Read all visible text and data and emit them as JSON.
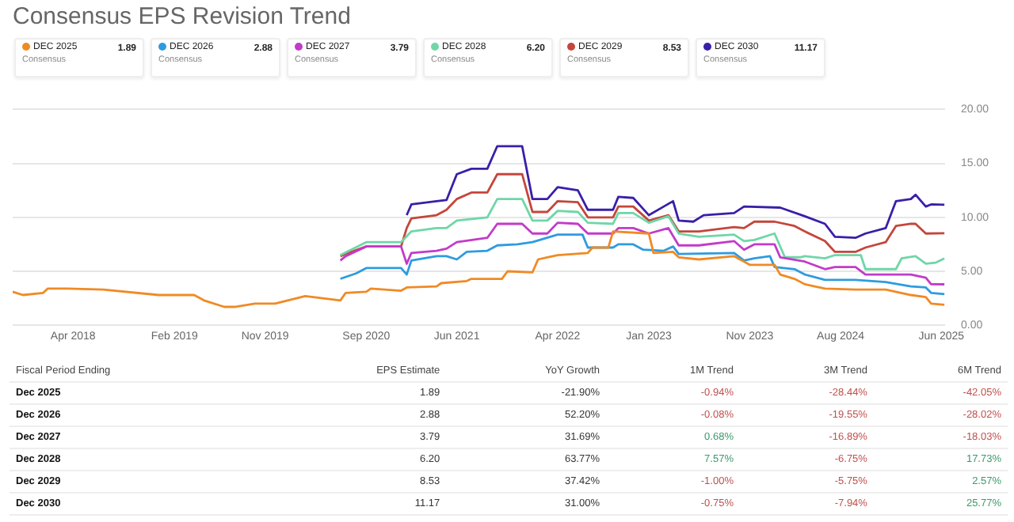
{
  "chart_data": [
    {
      "type": "line",
      "title": "Consensus EPS Revision Trend",
      "legend_title": "Consensus",
      "legend": "top left",
      "grid": "y",
      "marker": "none",
      "line_style": "solid",
      "xlim": [
        "2017-10-01",
        "2025-06-12"
      ],
      "xticks": [
        {
          "value": "2018-04",
          "label": "Apr 2018"
        },
        {
          "value": "2019-02",
          "label": "Feb 2019"
        },
        {
          "value": "2019-11",
          "label": "Nov 2019"
        },
        {
          "value": "2020-09",
          "label": "Sep 2020"
        },
        {
          "value": "2021-06",
          "label": "Jun 2021"
        },
        {
          "value": "2022-04",
          "label": "Apr 2022"
        },
        {
          "value": "2023-01",
          "label": "Jan 2023"
        },
        {
          "value": "2023-11",
          "label": "Nov 2023"
        },
        {
          "value": "2024-08",
          "label": "Aug 2024"
        },
        {
          "value": "2025-06",
          "label": "Jun 2025"
        }
      ],
      "ylim": [
        0,
        20
      ],
      "yticks": [
        {
          "value": 0,
          "label": "0.00"
        },
        {
          "value": 5,
          "label": "5.00"
        },
        {
          "value": 10,
          "label": "10.00"
        },
        {
          "value": 15,
          "label": "15.00"
        },
        {
          "value": 20,
          "label": "20.00"
        }
      ],
      "series": [
        {
          "name": "DEC 2025",
          "color": "#f08a24",
          "x": [
            "2017-10-01",
            "2017-11-01",
            "2018-01-01",
            "2018-01-15",
            "2018-03-15",
            "2018-07-01",
            "2018-12-15",
            "2019-04-01",
            "2019-05-01",
            "2019-07-01",
            "2019-08-01",
            "2019-10-01",
            "2019-12-01",
            "2020-03-01",
            "2020-06-15",
            "2020-07-01",
            "2020-09-01",
            "2020-09-15",
            "2020-12-15",
            "2021-01-01",
            "2021-04-01",
            "2021-04-15",
            "2021-07-01",
            "2021-07-15",
            "2021-10-15",
            "2021-11-01",
            "2022-01-15",
            "2022-02-01",
            "2022-03-01",
            "2022-04-01",
            "2022-07-01",
            "2022-07-15",
            "2022-09-01",
            "2022-09-15",
            "2023-01-01",
            "2023-01-15",
            "2023-03-15",
            "2023-04-01",
            "2023-06-01",
            "2023-09-15",
            "2023-10-15",
            "2023-11-01",
            "2024-01-15",
            "2024-02-01",
            "2024-03-15",
            "2024-04-15",
            "2024-05-15",
            "2024-06-15",
            "2024-09-15",
            "2024-12-15",
            "2025-03-01",
            "2025-04-15",
            "2025-05-01",
            "2025-06-10"
          ],
          "values": [
            3.1,
            2.8,
            3.0,
            3.4,
            3.4,
            3.3,
            2.8,
            2.8,
            2.3,
            1.7,
            1.7,
            2.0,
            2.0,
            2.7,
            2.3,
            3.0,
            3.1,
            3.4,
            3.2,
            3.5,
            3.6,
            3.9,
            4.1,
            4.3,
            4.3,
            5.0,
            4.9,
            6.1,
            6.3,
            6.5,
            6.7,
            7.2,
            7.2,
            8.7,
            8.5,
            6.7,
            6.8,
            6.3,
            6.1,
            6.4,
            5.9,
            5.6,
            5.6,
            4.7,
            4.3,
            3.8,
            3.6,
            3.4,
            3.3,
            3.3,
            2.8,
            2.6,
            2.0,
            1.89
          ]
        },
        {
          "name": "DEC 2026",
          "color": "#2e9be0",
          "x": [
            "2020-06-15",
            "2020-08-01",
            "2020-09-01",
            "2020-12-15",
            "2021-01-01",
            "2021-01-15",
            "2021-04-01",
            "2021-05-01",
            "2021-06-01",
            "2021-07-01",
            "2021-09-01",
            "2021-10-01",
            "2021-12-01",
            "2022-01-15",
            "2022-04-01",
            "2022-06-15",
            "2022-07-01",
            "2022-09-15",
            "2022-10-01",
            "2022-11-15",
            "2022-12-15",
            "2023-02-15",
            "2023-03-15",
            "2023-04-01",
            "2023-09-15",
            "2023-10-15",
            "2023-11-15",
            "2024-01-01",
            "2024-01-15",
            "2024-03-15",
            "2024-04-15",
            "2024-06-15",
            "2024-09-15",
            "2024-12-15",
            "2025-03-01",
            "2025-04-15",
            "2025-05-01",
            "2025-06-10"
          ],
          "values": [
            4.3,
            4.8,
            5.3,
            5.3,
            4.7,
            6.0,
            6.4,
            6.4,
            6.1,
            6.8,
            6.9,
            7.4,
            7.5,
            7.7,
            8.4,
            8.4,
            7.2,
            7.2,
            7.5,
            7.5,
            7.0,
            6.9,
            7.3,
            6.6,
            6.7,
            6.0,
            6.2,
            6.4,
            5.4,
            5.2,
            4.7,
            4.2,
            4.2,
            4.0,
            3.6,
            3.5,
            3.0,
            2.88
          ]
        },
        {
          "name": "DEC 2027",
          "color": "#c23bc9",
          "x": [
            "2020-06-15",
            "2020-07-01",
            "2020-09-01",
            "2020-12-15",
            "2021-01-01",
            "2021-01-15",
            "2021-04-01",
            "2021-05-01",
            "2021-06-01",
            "2021-09-01",
            "2021-10-01",
            "2021-12-15",
            "2022-01-15",
            "2022-03-01",
            "2022-04-01",
            "2022-06-01",
            "2022-07-01",
            "2022-09-15",
            "2022-10-01",
            "2022-11-15",
            "2023-01-01",
            "2023-03-01",
            "2023-04-01",
            "2023-06-01",
            "2023-09-15",
            "2023-10-15",
            "2023-11-15",
            "2024-01-15",
            "2024-02-01",
            "2024-04-15",
            "2024-06-15",
            "2024-07-15",
            "2024-09-15",
            "2024-10-15",
            "2025-03-01",
            "2025-04-15",
            "2025-05-01",
            "2025-06-10"
          ],
          "values": [
            6.0,
            6.4,
            7.3,
            7.3,
            5.7,
            6.7,
            6.9,
            7.1,
            7.7,
            8.1,
            9.4,
            9.4,
            8.5,
            8.5,
            9.5,
            9.4,
            8.5,
            8.5,
            9.0,
            9.0,
            8.5,
            9.0,
            7.4,
            7.4,
            7.8,
            7.0,
            7.5,
            7.5,
            6.3,
            5.9,
            5.2,
            5.4,
            5.4,
            4.7,
            4.7,
            4.4,
            3.8,
            3.79
          ]
        },
        {
          "name": "DEC 2028",
          "color": "#6fd6a8",
          "x": [
            "2020-06-15",
            "2020-09-01",
            "2020-12-15",
            "2021-01-15",
            "2021-04-01",
            "2021-05-01",
            "2021-06-01",
            "2021-09-01",
            "2021-10-01",
            "2021-12-15",
            "2022-01-15",
            "2022-03-01",
            "2022-04-01",
            "2022-06-01",
            "2022-07-01",
            "2022-09-15",
            "2022-10-01",
            "2022-11-15",
            "2023-01-01",
            "2023-03-01",
            "2023-04-01",
            "2023-06-01",
            "2023-09-15",
            "2023-10-15",
            "2023-11-15",
            "2024-01-15",
            "2024-02-15",
            "2024-04-01",
            "2024-04-15",
            "2024-06-15",
            "2024-07-15",
            "2024-10-01",
            "2024-10-15",
            "2025-01-15",
            "2025-02-01",
            "2025-03-15",
            "2025-04-15",
            "2025-05-15",
            "2025-06-10"
          ],
          "values": [
            6.5,
            7.7,
            7.7,
            8.7,
            9.0,
            9.0,
            9.7,
            10.0,
            11.7,
            11.7,
            9.7,
            9.7,
            10.6,
            10.5,
            9.5,
            9.4,
            10.4,
            10.4,
            9.5,
            10.1,
            8.5,
            8.2,
            8.4,
            7.8,
            7.9,
            8.5,
            6.3,
            6.3,
            6.4,
            6.2,
            6.5,
            6.5,
            5.2,
            5.2,
            6.2,
            6.4,
            5.7,
            5.8,
            6.2
          ]
        },
        {
          "name": "DEC 2029",
          "color": "#c4463c",
          "x": [
            "2020-06-15",
            "2020-07-01",
            "2020-09-01",
            "2020-12-15",
            "2021-01-01",
            "2021-01-15",
            "2021-04-01",
            "2021-05-01",
            "2021-06-01",
            "2021-07-15",
            "2021-09-01",
            "2021-10-01",
            "2021-12-15",
            "2022-01-15",
            "2022-03-01",
            "2022-04-01",
            "2022-06-01",
            "2022-07-01",
            "2022-09-15",
            "2022-10-01",
            "2022-11-15",
            "2023-01-01",
            "2023-03-01",
            "2023-04-01",
            "2023-06-01",
            "2023-09-15",
            "2023-10-15",
            "2023-11-15",
            "2024-01-15",
            "2024-03-15",
            "2024-04-15",
            "2024-06-15",
            "2024-07-15",
            "2024-09-15",
            "2024-10-15",
            "2024-12-15",
            "2025-01-15",
            "2025-03-01",
            "2025-03-15",
            "2025-04-15",
            "2025-06-10"
          ],
          "values": [
            6.4,
            6.6,
            7.3,
            7.3,
            9.0,
            9.9,
            10.2,
            10.7,
            11.7,
            12.3,
            12.3,
            14.0,
            14.0,
            10.5,
            10.5,
            11.5,
            11.4,
            10.0,
            10.0,
            11.0,
            11.0,
            9.7,
            10.2,
            8.7,
            8.7,
            9.1,
            9.0,
            9.6,
            9.6,
            9.2,
            8.7,
            7.8,
            6.8,
            6.8,
            7.2,
            7.7,
            9.2,
            9.4,
            9.4,
            8.5,
            8.53
          ]
        },
        {
          "name": "DEC 2030",
          "color": "#3a1fa8",
          "x": [
            "2021-01-01",
            "2021-01-15",
            "2021-04-01",
            "2021-05-01",
            "2021-06-01",
            "2021-07-15",
            "2021-09-01",
            "2021-10-01",
            "2021-12-15",
            "2022-01-15",
            "2022-03-01",
            "2022-04-01",
            "2022-06-01",
            "2022-07-01",
            "2022-09-15",
            "2022-10-01",
            "2022-11-15",
            "2023-01-01",
            "2023-02-15",
            "2023-03-15",
            "2023-04-01",
            "2023-05-15",
            "2023-06-15",
            "2023-09-15",
            "2023-10-15",
            "2024-02-01",
            "2024-04-15",
            "2024-06-15",
            "2024-07-15",
            "2024-09-15",
            "2024-10-15",
            "2024-12-15",
            "2025-01-15",
            "2025-03-01",
            "2025-03-15",
            "2025-04-15",
            "2025-05-01",
            "2025-06-10"
          ],
          "values": [
            10.2,
            11.2,
            11.5,
            11.6,
            14.0,
            14.5,
            14.5,
            16.6,
            16.6,
            11.7,
            11.7,
            12.8,
            12.5,
            10.7,
            10.7,
            11.9,
            11.8,
            10.2,
            11.0,
            11.5,
            9.7,
            9.6,
            10.2,
            10.4,
            11.0,
            10.9,
            10.1,
            9.4,
            8.2,
            8.1,
            8.5,
            9.0,
            11.5,
            11.7,
            12.1,
            11.0,
            11.2,
            11.17
          ]
        }
      ]
    },
    {
      "type": "other",
      "categories": [
        "Fiscal Period Ending",
        "EPS Estimate",
        "YoY Growth",
        "1M Trend",
        "3M Trend",
        "6M Trend"
      ],
      "cell_labels": [
        [
          "Dec 2025",
          "1.89",
          "-21.90%",
          "-0.94%",
          "-28.44%",
          "-42.05%"
        ],
        [
          "Dec 2026",
          "2.88",
          "52.20%",
          "-0.08%",
          "-19.55%",
          "-28.02%"
        ],
        [
          "Dec 2027",
          "3.79",
          "31.69%",
          "0.68%",
          "-16.89%",
          "-18.03%"
        ],
        [
          "Dec 2028",
          "6.20",
          "63.77%",
          "7.57%",
          "-6.75%",
          "17.73%"
        ],
        [
          "Dec 2029",
          "8.53",
          "37.42%",
          "-1.00%",
          "-5.75%",
          "2.57%"
        ],
        [
          "Dec 2030",
          "11.17",
          "31.00%",
          "-0.75%",
          "-7.94%",
          "25.77%"
        ]
      ],
      "colors": [
        [
          null,
          null,
          null,
          "#c0504d",
          "#c0504d",
          "#c0504d"
        ],
        [
          null,
          null,
          null,
          "#c0504d",
          "#c0504d",
          "#c0504d"
        ],
        [
          null,
          null,
          null,
          "#3a9a6a",
          "#c0504d",
          "#c0504d"
        ],
        [
          null,
          null,
          null,
          "#3a9a6a",
          "#c0504d",
          "#3a9a6a"
        ],
        [
          null,
          null,
          null,
          "#c0504d",
          "#c0504d",
          "#3a9a6a"
        ],
        [
          null,
          null,
          null,
          "#c0504d",
          "#c0504d",
          "#3a9a6a"
        ]
      ]
    }
  ]
}
